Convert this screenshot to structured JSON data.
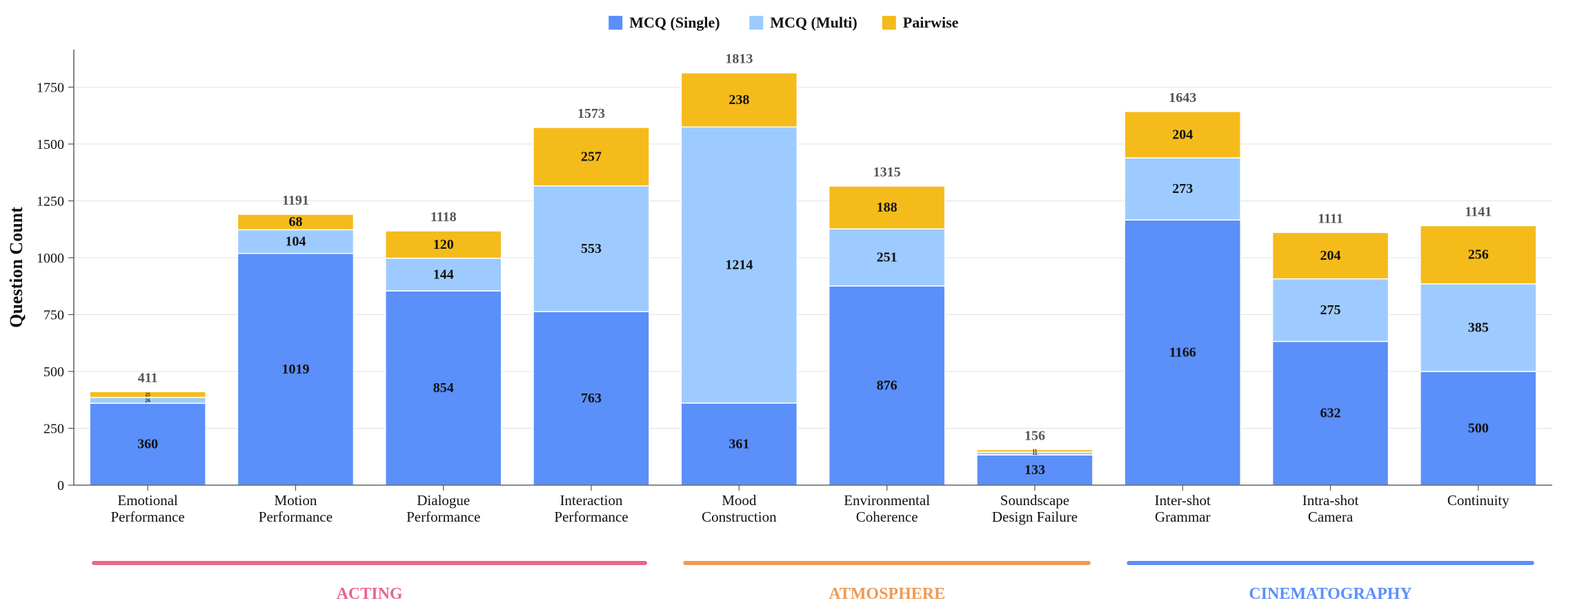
{
  "chart_data": {
    "type": "bar",
    "stacked": true,
    "ylabel": "Question Count",
    "ylim": [
      0,
      1900
    ],
    "yticks": [
      0,
      250,
      500,
      750,
      1000,
      1250,
      1500,
      1750
    ],
    "grid": true,
    "legend_position": "top-center",
    "categories": [
      [
        "Emotional",
        "Performance"
      ],
      [
        "Motion",
        "Performance"
      ],
      [
        "Dialogue",
        "Performance"
      ],
      [
        "Interaction",
        "Performance"
      ],
      [
        "Mood",
        "Construction"
      ],
      [
        "Environmental",
        "Coherence"
      ],
      [
        "Soundscape",
        "Design Failure"
      ],
      [
        "Inter-shot",
        "Grammar"
      ],
      [
        "Intra-shot",
        "Camera"
      ],
      [
        "Continuity"
      ]
    ],
    "series": [
      {
        "name": "MCQ (Single)",
        "color": "#5b8ff9",
        "values": [
          360,
          1019,
          854,
          763,
          361,
          876,
          133,
          1166,
          632,
          500
        ]
      },
      {
        "name": "MCQ (Multi)",
        "color": "#9ecbff",
        "values": [
          26,
          104,
          144,
          553,
          1214,
          251,
          12,
          273,
          275,
          385
        ]
      },
      {
        "name": "Pairwise",
        "color": "#f5bb1b",
        "values": [
          25,
          68,
          120,
          257,
          238,
          188,
          11,
          204,
          204,
          256
        ]
      }
    ],
    "totals": [
      411,
      1191,
      1118,
      1573,
      1813,
      1315,
      156,
      1643,
      1111,
      1141
    ],
    "groups": [
      {
        "label": "ACTING",
        "color": "#e8678a",
        "start": 0,
        "end": 3
      },
      {
        "label": "ATMOSPHERE",
        "color": "#ef9a54",
        "start": 4,
        "end": 6
      },
      {
        "label": "CINEMATOGRAPHY",
        "color": "#5b8ff9",
        "start": 7,
        "end": 9
      }
    ]
  }
}
